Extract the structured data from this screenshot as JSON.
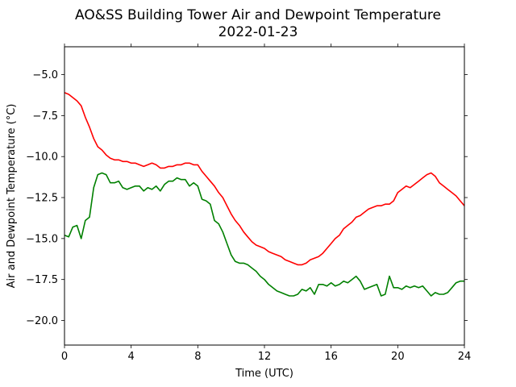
{
  "chart_data": {
    "type": "line",
    "title": "AO&SS Building Tower Air and Dewpoint Temperature",
    "subtitle": "2022-01-23",
    "xlabel": "Time (UTC)",
    "ylabel": "Air and Dewpoint Temperature (°C)",
    "xlim": [
      0,
      24
    ],
    "ylim": [
      -21.5,
      -3.3
    ],
    "xticks": [
      0,
      4,
      8,
      12,
      16,
      20,
      24
    ],
    "yticks": [
      -20.0,
      -17.5,
      -15.0,
      -12.5,
      -10.0,
      -7.5,
      -5.0
    ],
    "grid": false,
    "series": [
      {
        "color": "#ff0000",
        "x": [
          0,
          0.25,
          0.5,
          0.75,
          1.0,
          1.25,
          1.5,
          1.75,
          2.0,
          2.25,
          2.5,
          2.75,
          3.0,
          3.25,
          3.5,
          3.75,
          4.0,
          4.25,
          4.5,
          4.75,
          5.0,
          5.25,
          5.5,
          5.75,
          6.0,
          6.25,
          6.5,
          6.75,
          7.0,
          7.25,
          7.5,
          7.75,
          8.0,
          8.25,
          8.5,
          8.75,
          9.0,
          9.25,
          9.5,
          9.75,
          10.0,
          10.25,
          10.5,
          10.75,
          11.0,
          11.25,
          11.5,
          11.75,
          12.0,
          12.25,
          12.5,
          12.75,
          13.0,
          13.25,
          13.5,
          13.75,
          14.0,
          14.25,
          14.5,
          14.75,
          15.0,
          15.25,
          15.5,
          15.75,
          16.0,
          16.25,
          16.5,
          16.75,
          17.0,
          17.25,
          17.5,
          17.75,
          18.0,
          18.25,
          18.5,
          18.75,
          19.0,
          19.25,
          19.5,
          19.75,
          20.0,
          20.25,
          20.5,
          20.75,
          21.0,
          21.25,
          21.5,
          21.75,
          22.0,
          22.25,
          22.5,
          22.75,
          23.0,
          23.25,
          23.5,
          23.75,
          24.0
        ],
        "values": [
          -6.1,
          -6.2,
          -6.4,
          -6.6,
          -6.9,
          -7.6,
          -8.2,
          -8.9,
          -9.4,
          -9.6,
          -9.9,
          -10.1,
          -10.2,
          -10.2,
          -10.3,
          -10.3,
          -10.4,
          -10.4,
          -10.5,
          -10.6,
          -10.5,
          -10.4,
          -10.5,
          -10.7,
          -10.7,
          -10.6,
          -10.6,
          -10.5,
          -10.5,
          -10.4,
          -10.4,
          -10.5,
          -10.5,
          -10.9,
          -11.2,
          -11.5,
          -11.8,
          -12.2,
          -12.5,
          -13.0,
          -13.5,
          -13.9,
          -14.2,
          -14.6,
          -14.9,
          -15.2,
          -15.4,
          -15.5,
          -15.6,
          -15.8,
          -15.9,
          -16.0,
          -16.1,
          -16.3,
          -16.4,
          -16.5,
          -16.6,
          -16.6,
          -16.5,
          -16.3,
          -16.2,
          -16.1,
          -15.9,
          -15.6,
          -15.3,
          -15.0,
          -14.8,
          -14.4,
          -14.2,
          -14.0,
          -13.7,
          -13.6,
          -13.4,
          -13.2,
          -13.1,
          -13.0,
          -13.0,
          -12.9,
          -12.9,
          -12.7,
          -12.2,
          -12.0,
          -11.8,
          -11.9,
          -11.7,
          -11.5,
          -11.3,
          -11.1,
          -11.0,
          -11.2,
          -11.6,
          -11.8,
          -12.0,
          -12.2,
          -12.4,
          -12.7,
          -13.0
        ]
      },
      {
        "color": "#008000",
        "x": [
          0,
          0.25,
          0.5,
          0.75,
          1.0,
          1.25,
          1.5,
          1.75,
          2.0,
          2.25,
          2.5,
          2.75,
          3.0,
          3.25,
          3.5,
          3.75,
          4.0,
          4.25,
          4.5,
          4.75,
          5.0,
          5.25,
          5.5,
          5.75,
          6.0,
          6.25,
          6.5,
          6.75,
          7.0,
          7.25,
          7.5,
          7.75,
          8.0,
          8.25,
          8.5,
          8.75,
          9.0,
          9.25,
          9.5,
          9.75,
          10.0,
          10.25,
          10.5,
          10.75,
          11.0,
          11.25,
          11.5,
          11.75,
          12.0,
          12.25,
          12.5,
          12.75,
          13.0,
          13.25,
          13.5,
          13.75,
          14.0,
          14.25,
          14.5,
          14.75,
          15.0,
          15.25,
          15.5,
          15.75,
          16.0,
          16.25,
          16.5,
          16.75,
          17.0,
          17.25,
          17.5,
          17.75,
          18.0,
          18.25,
          18.5,
          18.75,
          19.0,
          19.25,
          19.5,
          19.75,
          20.0,
          20.25,
          20.5,
          20.75,
          21.0,
          21.25,
          21.5,
          21.75,
          22.0,
          22.25,
          22.5,
          22.75,
          23.0,
          23.25,
          23.5,
          23.75,
          24.0
        ],
        "values": [
          -14.8,
          -14.9,
          -14.3,
          -14.2,
          -15.0,
          -13.9,
          -13.7,
          -11.9,
          -11.1,
          -11.0,
          -11.1,
          -11.6,
          -11.6,
          -11.5,
          -11.9,
          -12.0,
          -11.9,
          -11.8,
          -11.8,
          -12.1,
          -11.9,
          -12.0,
          -11.8,
          -12.1,
          -11.7,
          -11.5,
          -11.5,
          -11.3,
          -11.4,
          -11.4,
          -11.8,
          -11.6,
          -11.8,
          -12.6,
          -12.7,
          -12.9,
          -13.9,
          -14.1,
          -14.6,
          -15.3,
          -16.0,
          -16.4,
          -16.5,
          -16.5,
          -16.6,
          -16.8,
          -17.0,
          -17.3,
          -17.5,
          -17.8,
          -18.0,
          -18.2,
          -18.3,
          -18.4,
          -18.5,
          -18.5,
          -18.4,
          -18.1,
          -18.2,
          -18.0,
          -18.4,
          -17.8,
          -17.8,
          -17.9,
          -17.7,
          -17.9,
          -17.8,
          -17.6,
          -17.7,
          -17.5,
          -17.3,
          -17.6,
          -18.1,
          -18.0,
          -17.9,
          -17.8,
          -18.5,
          -18.4,
          -17.3,
          -18.0,
          -18.0,
          -18.1,
          -17.9,
          -18.0,
          -17.9,
          -18.0,
          -17.9,
          -18.2,
          -18.5,
          -18.3,
          -18.4,
          -18.4,
          -18.3,
          -18.0,
          -17.7,
          -17.6,
          -17.6
        ]
      }
    ]
  }
}
